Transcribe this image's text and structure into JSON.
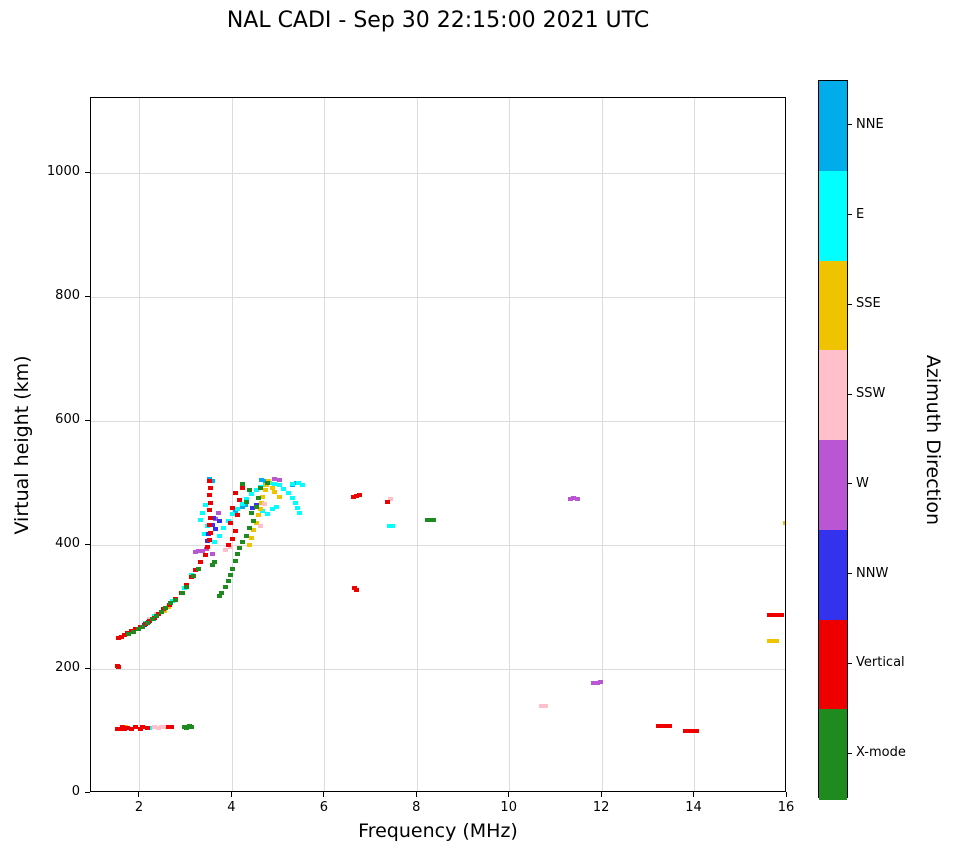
{
  "chart_data": {
    "type": "scatter",
    "title": "NAL CADI - Sep 30 22:15:00 2021 UTC",
    "xlabel": "Frequency (MHz)",
    "ylabel": "Virtual height (km)",
    "colorbar_label": "Azimuth Direction",
    "xlim": [
      0.94,
      16
    ],
    "ylim": [
      0,
      1121
    ],
    "xticks": [
      2,
      4,
      6,
      8,
      10,
      12,
      14,
      16
    ],
    "yticks": [
      0,
      200,
      400,
      600,
      800,
      1000
    ],
    "grid": true,
    "legend_position": "right-colorbar",
    "series": [
      {
        "name": "NNE",
        "color": "#00ACEA",
        "points": [
          [
            2.02,
            267
          ],
          [
            2.28,
            281
          ],
          [
            3.5,
            506
          ],
          [
            3.56,
            503
          ],
          [
            4.05,
            455
          ],
          [
            4.2,
            461
          ],
          [
            4.28,
            464
          ],
          [
            4.62,
            505
          ],
          [
            4.7,
            503
          ],
          [
            5.28,
            497
          ],
          [
            5.38,
            500
          ]
        ]
      },
      {
        "name": "E",
        "color": "#00FFFF",
        "points": [
          [
            1.62,
            107
          ],
          [
            2.2,
            105
          ],
          [
            2.1,
            275
          ],
          [
            2.3,
            285
          ],
          [
            2.5,
            297
          ],
          [
            2.7,
            310
          ],
          [
            2.95,
            330
          ],
          [
            3.1,
            352
          ],
          [
            3.3,
            440
          ],
          [
            3.35,
            452
          ],
          [
            3.4,
            464
          ],
          [
            3.45,
            430
          ],
          [
            3.38,
            418
          ],
          [
            3.6,
            405
          ],
          [
            3.7,
            415
          ],
          [
            3.8,
            428
          ],
          [
            3.9,
            438
          ],
          [
            4.0,
            450
          ],
          [
            4.1,
            458
          ],
          [
            4.2,
            466
          ],
          [
            4.3,
            474
          ],
          [
            4.4,
            482
          ],
          [
            4.5,
            488
          ],
          [
            4.6,
            493
          ],
          [
            4.7,
            497
          ],
          [
            4.8,
            500
          ],
          [
            4.9,
            499
          ],
          [
            5.0,
            496
          ],
          [
            5.1,
            491
          ],
          [
            5.2,
            484
          ],
          [
            5.3,
            476
          ],
          [
            5.35,
            468
          ],
          [
            5.4,
            460
          ],
          [
            5.45,
            452
          ],
          [
            5.3,
            498
          ],
          [
            5.42,
            500
          ],
          [
            5.5,
            497
          ],
          [
            4.55,
            448
          ],
          [
            4.65,
            455
          ],
          [
            4.75,
            450
          ],
          [
            4.85,
            458
          ],
          [
            4.95,
            462
          ],
          [
            7.38,
            430
          ],
          [
            7.45,
            430
          ]
        ]
      },
      {
        "name": "SSE",
        "color": "#F0C300",
        "points": [
          [
            1.68,
            106
          ],
          [
            2.52,
            294
          ],
          [
            2.6,
            300
          ],
          [
            4.35,
            400
          ],
          [
            4.4,
            412
          ],
          [
            4.45,
            424
          ],
          [
            4.5,
            436
          ],
          [
            4.55,
            448
          ],
          [
            4.6,
            458
          ],
          [
            4.62,
            468
          ],
          [
            4.65,
            478
          ],
          [
            4.7,
            488
          ],
          [
            4.72,
            497
          ],
          [
            4.78,
            503
          ],
          [
            4.85,
            492
          ],
          [
            4.9,
            485
          ],
          [
            5.0,
            478
          ],
          [
            15.6,
            245
          ],
          [
            15.68,
            245
          ],
          [
            15.76,
            245
          ],
          [
            15.95,
            435
          ],
          [
            16.0,
            436
          ]
        ]
      },
      {
        "name": "SSW",
        "color": "#FFC0CB",
        "points": [
          [
            2.3,
            106
          ],
          [
            2.38,
            105
          ],
          [
            2.46,
            107
          ],
          [
            2.54,
            106
          ],
          [
            2.62,
            107
          ],
          [
            2.2,
            280
          ],
          [
            2.35,
            288
          ],
          [
            3.85,
            392
          ],
          [
            3.95,
            396
          ],
          [
            4.6,
            430
          ],
          [
            4.68,
            466
          ],
          [
            7.42,
            474
          ],
          [
            10.68,
            140
          ],
          [
            10.76,
            141
          ]
        ]
      },
      {
        "name": "W",
        "color": "#BA55D3",
        "points": [
          [
            3.18,
            388
          ],
          [
            3.26,
            390
          ],
          [
            3.34,
            391
          ],
          [
            3.42,
            393
          ],
          [
            3.55,
            385
          ],
          [
            3.62,
            442
          ],
          [
            3.68,
            452
          ],
          [
            4.9,
            506
          ],
          [
            5.0,
            505
          ],
          [
            11.3,
            475
          ],
          [
            11.38,
            476
          ],
          [
            11.46,
            475
          ],
          [
            11.8,
            178
          ],
          [
            11.88,
            178
          ],
          [
            11.96,
            179
          ]
        ]
      },
      {
        "name": "NNW",
        "color": "#3333EE",
        "points": [
          [
            1.58,
            104
          ],
          [
            2.08,
            271
          ],
          [
            2.18,
            276
          ],
          [
            3.45,
            406
          ],
          [
            3.48,
            418
          ],
          [
            3.55,
            432
          ],
          [
            3.58,
            444
          ],
          [
            3.62,
            426
          ],
          [
            3.7,
            438
          ],
          [
            4.42,
            460
          ],
          [
            4.5,
            464
          ]
        ]
      },
      {
        "name": "Vertical",
        "color": "#EE0000",
        "points": [
          [
            1.5,
            205
          ],
          [
            1.52,
            203
          ],
          [
            1.5,
            104
          ],
          [
            1.55,
            103
          ],
          [
            1.6,
            106
          ],
          [
            1.65,
            104
          ],
          [
            1.72,
            105
          ],
          [
            1.8,
            104
          ],
          [
            1.9,
            106
          ],
          [
            2.0,
            104
          ],
          [
            2.05,
            107
          ],
          [
            2.15,
            105
          ],
          [
            2.6,
            106
          ],
          [
            2.68,
            107
          ],
          [
            1.52,
            250
          ],
          [
            1.58,
            252
          ],
          [
            1.65,
            255
          ],
          [
            1.72,
            258
          ],
          [
            1.8,
            261
          ],
          [
            1.9,
            264
          ],
          [
            2.0,
            268
          ],
          [
            2.1,
            272
          ],
          [
            2.2,
            277
          ],
          [
            2.3,
            283
          ],
          [
            2.4,
            289
          ],
          [
            2.5,
            296
          ],
          [
            2.62,
            303
          ],
          [
            2.75,
            313
          ],
          [
            2.88,
            323
          ],
          [
            3.0,
            335
          ],
          [
            3.1,
            348
          ],
          [
            3.2,
            360
          ],
          [
            3.3,
            372
          ],
          [
            3.4,
            384
          ],
          [
            3.45,
            396
          ],
          [
            3.5,
            408
          ],
          [
            3.52,
            420
          ],
          [
            3.5,
            432
          ],
          [
            3.52,
            444
          ],
          [
            3.5,
            456
          ],
          [
            3.52,
            468
          ],
          [
            3.5,
            480
          ],
          [
            3.52,
            492
          ],
          [
            3.5,
            503
          ],
          [
            3.9,
            400
          ],
          [
            4.0,
            410
          ],
          [
            4.05,
            422
          ],
          [
            3.95,
            435
          ],
          [
            4.1,
            448
          ],
          [
            4.0,
            460
          ],
          [
            4.15,
            472
          ],
          [
            4.05,
            484
          ],
          [
            4.2,
            492
          ],
          [
            6.6,
            478
          ],
          [
            6.67,
            479
          ],
          [
            6.74,
            480
          ],
          [
            6.62,
            330
          ],
          [
            6.68,
            328
          ],
          [
            7.35,
            470
          ],
          [
            13.2,
            108
          ],
          [
            13.28,
            108
          ],
          [
            13.36,
            108
          ],
          [
            13.44,
            108
          ],
          [
            13.8,
            100
          ],
          [
            13.88,
            100
          ],
          [
            13.96,
            100
          ],
          [
            14.04,
            100
          ],
          [
            15.62,
            287
          ],
          [
            15.7,
            287
          ],
          [
            15.78,
            287
          ],
          [
            15.86,
            287
          ]
        ]
      },
      {
        "name": "X-mode",
        "color": "#1F8B1F",
        "points": [
          [
            2.95,
            107
          ],
          [
            3.0,
            105
          ],
          [
            3.05,
            108
          ],
          [
            3.1,
            106
          ],
          [
            1.75,
            256
          ],
          [
            1.85,
            260
          ],
          [
            1.95,
            264
          ],
          [
            2.05,
            268
          ],
          [
            2.15,
            274
          ],
          [
            2.25,
            280
          ],
          [
            2.35,
            286
          ],
          [
            2.45,
            292
          ],
          [
            2.55,
            299
          ],
          [
            2.65,
            306
          ],
          [
            2.75,
            312
          ],
          [
            2.9,
            322
          ],
          [
            3.0,
            332
          ],
          [
            3.15,
            350
          ],
          [
            3.25,
            362
          ],
          [
            3.55,
            368
          ],
          [
            3.6,
            372
          ],
          [
            3.7,
            318
          ],
          [
            3.75,
            322
          ],
          [
            3.85,
            332
          ],
          [
            3.9,
            342
          ],
          [
            3.95,
            352
          ],
          [
            4.0,
            362
          ],
          [
            4.05,
            375
          ],
          [
            4.1,
            385
          ],
          [
            4.15,
            395
          ],
          [
            4.2,
            405
          ],
          [
            4.3,
            415
          ],
          [
            4.35,
            428
          ],
          [
            4.45,
            438
          ],
          [
            4.4,
            452
          ],
          [
            4.5,
            462
          ],
          [
            4.3,
            470
          ],
          [
            4.55,
            476
          ],
          [
            4.35,
            488
          ],
          [
            4.6,
            492
          ],
          [
            4.75,
            500
          ],
          [
            4.2,
            498
          ],
          [
            8.2,
            440
          ],
          [
            8.3,
            440
          ],
          [
            8.35,
            440
          ]
        ]
      }
    ]
  }
}
